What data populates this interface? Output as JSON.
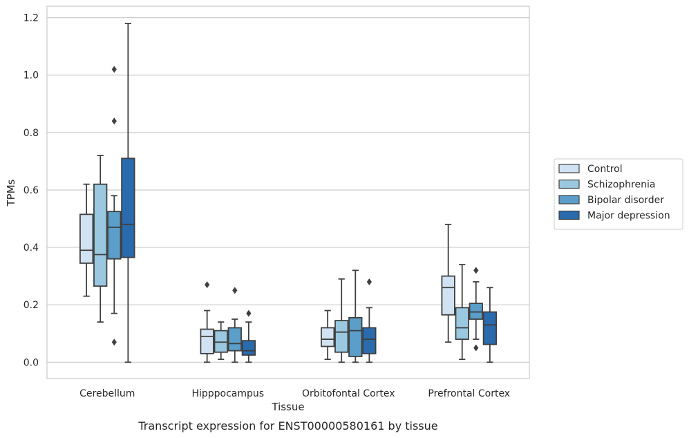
{
  "chart_data": {
    "type": "boxplot",
    "title": "",
    "caption": "Transcript expression for ENST00000580161 by tissue",
    "xlabel": "Tissue",
    "ylabel": "TPMs",
    "ylim": [
      -0.057,
      1.24
    ],
    "yticks": [
      0.0,
      0.2,
      0.4,
      0.6,
      0.8,
      1.0,
      1.2
    ],
    "ytick_labels": [
      "0.0",
      "0.2",
      "0.4",
      "0.6",
      "0.8",
      "1.0",
      "1.2"
    ],
    "grid": "horizontal",
    "legend_position": "right",
    "categories": [
      "Cerebellum",
      "Hipppocampus",
      "Orbitofontal Cortex",
      "Prefrontal Cortex"
    ],
    "series": [
      {
        "name": "Control",
        "color": "#d1e2f2",
        "boxes": [
          {
            "whislo": 0.23,
            "q1": 0.345,
            "med": 0.39,
            "q3": 0.515,
            "whishi": 0.62,
            "fliers": []
          },
          {
            "whislo": 0.0,
            "q1": 0.03,
            "med": 0.09,
            "q3": 0.115,
            "whishi": 0.18,
            "fliers": [
              0.27
            ]
          },
          {
            "whislo": 0.01,
            "q1": 0.055,
            "med": 0.08,
            "q3": 0.12,
            "whishi": 0.18,
            "fliers": []
          },
          {
            "whislo": 0.07,
            "q1": 0.165,
            "med": 0.26,
            "q3": 0.3,
            "whishi": 0.48,
            "fliers": []
          }
        ]
      },
      {
        "name": "Schizophrenia",
        "color": "#9ac8e0",
        "boxes": [
          {
            "whislo": 0.14,
            "q1": 0.265,
            "med": 0.375,
            "q3": 0.62,
            "whishi": 0.72,
            "fliers": []
          },
          {
            "whislo": 0.01,
            "q1": 0.035,
            "med": 0.07,
            "q3": 0.11,
            "whishi": 0.14,
            "fliers": []
          },
          {
            "whislo": 0.0,
            "q1": 0.035,
            "med": 0.105,
            "q3": 0.145,
            "whishi": 0.29,
            "fliers": []
          },
          {
            "whislo": 0.01,
            "q1": 0.08,
            "med": 0.12,
            "q3": 0.19,
            "whishi": 0.34,
            "fliers": []
          }
        ]
      },
      {
        "name": "Bipolar disorder",
        "color": "#5a9ec9",
        "boxes": [
          {
            "whislo": 0.17,
            "q1": 0.36,
            "med": 0.47,
            "q3": 0.525,
            "whishi": 0.58,
            "fliers": [
              1.02,
              0.84,
              0.07
            ]
          },
          {
            "whislo": 0.0,
            "q1": 0.04,
            "med": 0.065,
            "q3": 0.12,
            "whishi": 0.15,
            "fliers": [
              0.25
            ]
          },
          {
            "whislo": 0.0,
            "q1": 0.02,
            "med": 0.11,
            "q3": 0.155,
            "whishi": 0.32,
            "fliers": []
          },
          {
            "whislo": 0.08,
            "q1": 0.15,
            "med": 0.175,
            "q3": 0.205,
            "whishi": 0.28,
            "fliers": [
              0.32,
              0.05
            ]
          }
        ]
      },
      {
        "name": "Major depression",
        "color": "#2a6bad",
        "boxes": [
          {
            "whislo": 0.0,
            "q1": 0.365,
            "med": 0.48,
            "q3": 0.71,
            "whishi": 1.18,
            "fliers": []
          },
          {
            "whislo": 0.0,
            "q1": 0.025,
            "med": 0.04,
            "q3": 0.075,
            "whishi": 0.14,
            "fliers": [
              0.17
            ]
          },
          {
            "whislo": 0.0,
            "q1": 0.03,
            "med": 0.08,
            "q3": 0.12,
            "whishi": 0.19,
            "fliers": [
              0.28
            ]
          },
          {
            "whislo": 0.0,
            "q1": 0.062,
            "med": 0.13,
            "q3": 0.175,
            "whishi": 0.26,
            "fliers": []
          }
        ]
      }
    ]
  }
}
